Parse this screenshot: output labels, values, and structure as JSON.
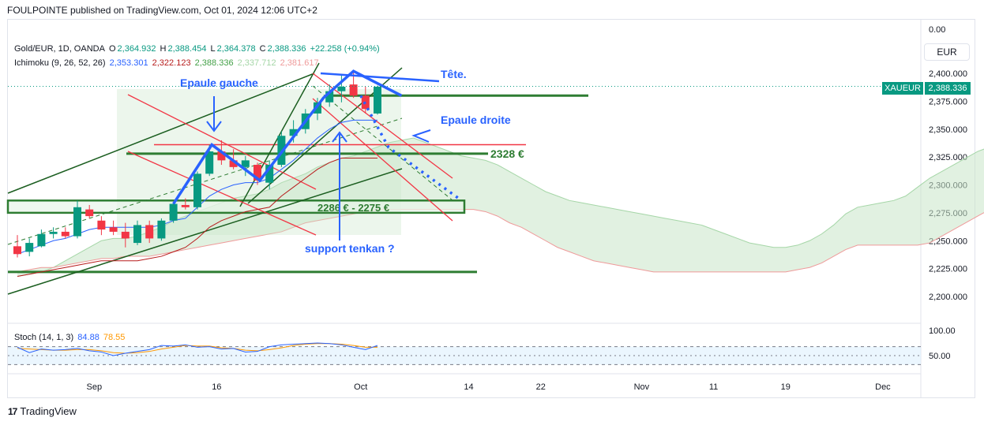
{
  "header": {
    "text": "FOULPOINTE published on TradingView.com, Oct 01, 2024 12:06 UTC+2"
  },
  "legend": {
    "symbol": "Gold/EUR, 1D, OANDA",
    "o_label": "O",
    "o": "2,364.932",
    "h_label": "H",
    "h": "2,388.454",
    "l_label": "L",
    "l": "2,364.378",
    "c_label": "C",
    "c": "2,388.336",
    "change": "+22.258 (+0.94%)",
    "ichimoku_label": "Ichimoku (9, 26, 52, 26)",
    "ichi_values": [
      "2,353.301",
      "2,322.123",
      "2,388.336",
      "2,337.712",
      "2,381.617"
    ],
    "stoch_label": "Stoch (14, 1, 3)",
    "stoch_k": "84.88",
    "stoch_d": "78.55"
  },
  "currency": "EUR",
  "price_tag": "2,388.336",
  "symbol_tag": "XAUEUR",
  "footer": {
    "brand": "TradingView",
    "logo": "17"
  },
  "colors": {
    "up": "#089981",
    "down": "#f23645",
    "tenkan": "#2962ff",
    "kijun": "#b71c1c",
    "cloud": "#c8e6c9",
    "annotation": "#2962ff",
    "zone": "#2e7d32"
  },
  "chart_data": {
    "type": "candlestick",
    "y_ticks": [
      "0.00",
      "2,400.000",
      "2,375.000",
      "2,350.000",
      "2,325.000",
      "2,300.000",
      "2,275.000",
      "2,250.000",
      "2,225.000",
      "2,200.000"
    ],
    "y_ticks_values": [
      null,
      2400,
      2375,
      2350,
      2325,
      2300,
      2275,
      2250,
      2225,
      2200
    ],
    "x_ticks": [
      "Sep",
      "16",
      "Oct",
      "14",
      "22",
      "Nov",
      "11",
      "19",
      "Dec"
    ],
    "stoch_ticks": [
      "100.00",
      "50.00"
    ],
    "candles": [
      {
        "o": 2245,
        "h": 2255,
        "l": 2235,
        "c": 2238
      },
      {
        "o": 2240,
        "h": 2252,
        "l": 2236,
        "c": 2248
      },
      {
        "o": 2245,
        "h": 2260,
        "l": 2244,
        "c": 2256
      },
      {
        "o": 2256,
        "h": 2262,
        "l": 2252,
        "c": 2258
      },
      {
        "o": 2258,
        "h": 2262,
        "l": 2252,
        "c": 2254
      },
      {
        "o": 2254,
        "h": 2286,
        "l": 2252,
        "c": 2280
      },
      {
        "o": 2278,
        "h": 2282,
        "l": 2270,
        "c": 2272
      },
      {
        "o": 2268,
        "h": 2272,
        "l": 2255,
        "c": 2260
      },
      {
        "o": 2262,
        "h": 2268,
        "l": 2255,
        "c": 2258
      },
      {
        "o": 2258,
        "h": 2266,
        "l": 2244,
        "c": 2252
      },
      {
        "o": 2248,
        "h": 2268,
        "l": 2246,
        "c": 2264
      },
      {
        "o": 2264,
        "h": 2268,
        "l": 2248,
        "c": 2252
      },
      {
        "o": 2252,
        "h": 2270,
        "l": 2250,
        "c": 2268
      },
      {
        "o": 2268,
        "h": 2284,
        "l": 2266,
        "c": 2283
      },
      {
        "o": 2282,
        "h": 2288,
        "l": 2278,
        "c": 2280
      },
      {
        "o": 2280,
        "h": 2312,
        "l": 2278,
        "c": 2310
      },
      {
        "o": 2310,
        "h": 2336,
        "l": 2308,
        "c": 2330
      },
      {
        "o": 2330,
        "h": 2340,
        "l": 2318,
        "c": 2322
      },
      {
        "o": 2322,
        "h": 2332,
        "l": 2314,
        "c": 2316
      },
      {
        "o": 2316,
        "h": 2326,
        "l": 2308,
        "c": 2322
      },
      {
        "o": 2318,
        "h": 2320,
        "l": 2300,
        "c": 2304
      },
      {
        "o": 2302,
        "h": 2322,
        "l": 2296,
        "c": 2318
      },
      {
        "o": 2318,
        "h": 2348,
        "l": 2316,
        "c": 2344
      },
      {
        "o": 2344,
        "h": 2358,
        "l": 2338,
        "c": 2350
      },
      {
        "o": 2350,
        "h": 2368,
        "l": 2346,
        "c": 2364
      },
      {
        "o": 2364,
        "h": 2378,
        "l": 2358,
        "c": 2374
      },
      {
        "o": 2374,
        "h": 2390,
        "l": 2370,
        "c": 2384
      },
      {
        "o": 2384,
        "h": 2398,
        "l": 2374,
        "c": 2388
      },
      {
        "o": 2390,
        "h": 2402,
        "l": 2378,
        "c": 2380
      },
      {
        "o": 2380,
        "h": 2388,
        "l": 2364,
        "c": 2368
      },
      {
        "o": 2364,
        "h": 2389,
        "l": 2363,
        "c": 2388
      }
    ],
    "tenkan": [
      2238,
      2242,
      2246,
      2250,
      2252,
      2256,
      2260,
      2262,
      2262,
      2262,
      2262,
      2262,
      2264,
      2268,
      2270,
      2280,
      2290,
      2296,
      2300,
      2302,
      2302,
      2306,
      2314,
      2322,
      2332,
      2342,
      2350,
      2356,
      2358,
      2358,
      2358
    ],
    "kijun": [
      2218,
      2220,
      2222,
      2224,
      2226,
      2228,
      2230,
      2232,
      2232,
      2232,
      2232,
      2234,
      2236,
      2240,
      2244,
      2252,
      2262,
      2268,
      2272,
      2276,
      2278,
      2280,
      2290,
      2298,
      2306,
      2314,
      2320,
      2324,
      2324,
      2324,
      2324
    ],
    "cloud_a": [
      2218,
      2220,
      2222,
      2226,
      2232,
      2238,
      2244,
      2250,
      2252,
      2252,
      2254,
      2258,
      2262,
      2268,
      2272,
      2276,
      2280,
      2284,
      2288,
      2290,
      2292,
      2296,
      2302,
      2306,
      2310,
      2316,
      2320,
      2324,
      2326,
      2330,
      2334,
      2338,
      2340,
      2342,
      2338,
      2334,
      2330,
      2326,
      2324,
      2322,
      2318,
      2312,
      2306,
      2300,
      2294,
      2290,
      2286,
      2284,
      2282,
      2280,
      2278,
      2276,
      2274,
      2272,
      2270,
      2268,
      2266,
      2264,
      2260,
      2256,
      2252,
      2248,
      2246,
      2244,
      2244,
      2246,
      2250,
      2256,
      2264,
      2274,
      2280,
      2282,
      2284,
      2286,
      2290,
      2298,
      2306,
      2312,
      2318,
      2324,
      2330,
      2334,
      2337,
      2338
    ],
    "cloud_b": [
      2222,
      2224,
      2226,
      2226,
      2228,
      2230,
      2232,
      2234,
      2234,
      2236,
      2236,
      2236,
      2238,
      2240,
      2242,
      2244,
      2246,
      2248,
      2250,
      2252,
      2254,
      2256,
      2258,
      2262,
      2266,
      2268,
      2270,
      2272,
      2274,
      2276,
      2278,
      2278,
      2278,
      2278,
      2278,
      2278,
      2278,
      2278,
      2278,
      2276,
      2272,
      2266,
      2262,
      2256,
      2250,
      2244,
      2240,
      2236,
      2232,
      2230,
      2228,
      2226,
      2224,
      2222,
      2222,
      2222,
      2222,
      2222,
      2222,
      2222,
      2222,
      2222,
      2222,
      2222,
      2222,
      2224,
      2226,
      2230,
      2236,
      2242,
      2246,
      2246,
      2246,
      2246,
      2246,
      2246,
      2248,
      2254,
      2260,
      2266,
      2272,
      2278,
      2281,
      2281
    ],
    "stoch_k": [
      78,
      60,
      72,
      68,
      70,
      74,
      66,
      62,
      50,
      58,
      64,
      70,
      84,
      82,
      86,
      78,
      80,
      72,
      74,
      62,
      64,
      80,
      86,
      88,
      90,
      92,
      90,
      86,
      78,
      70,
      84
    ],
    "stoch_d": [
      74,
      72,
      70,
      68,
      68,
      70,
      70,
      66,
      60,
      58,
      60,
      64,
      72,
      78,
      84,
      82,
      82,
      76,
      74,
      68,
      66,
      70,
      76,
      84,
      88,
      90,
      90,
      88,
      84,
      78,
      78
    ],
    "levels": [
      {
        "label": "2328 €",
        "value": 2328
      },
      {
        "label": "2286 € - 2275 €",
        "value_top": 2286,
        "value_bottom": 2275
      },
      {
        "label": "",
        "value": 2222
      },
      {
        "label": "",
        "value": 2380
      }
    ],
    "annotations": [
      "Epaule gauche",
      "Tête.",
      "Epaule droite",
      "support tenkan ?"
    ]
  }
}
